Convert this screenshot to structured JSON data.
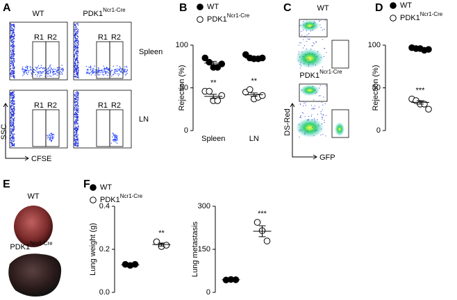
{
  "panel_labels": [
    "A",
    "B",
    "C",
    "D",
    "E",
    "F"
  ],
  "flow_a": {
    "groups": [
      "WT",
      "PDK1"
    ],
    "group_sup": "Ncr1-Cre",
    "gates": [
      "R1",
      "R2"
    ],
    "tissues": [
      "Spleen",
      "LN"
    ],
    "ylabel": "SSC",
    "xlabel": "CFSE"
  },
  "flow_c": {
    "groups": [
      "WT",
      "PDK1"
    ],
    "group_sup": "Ncr1-Cre",
    "ylabel": "DS-Red",
    "xlabel": "GFP"
  },
  "photo_e": {
    "groups": [
      "WT",
      "PDK1"
    ],
    "group_sup": "Ncr1-Cre"
  },
  "chart_data": [
    {
      "type": "dot",
      "categories": [
        "Spleen",
        "LN"
      ],
      "ylabel": "Rejection (%)",
      "ylim": [
        0,
        100
      ],
      "yticks": [
        0,
        50,
        100
      ],
      "legend": true,
      "series": [
        {
          "name": "WT",
          "marker": "filled",
          "color": "#000000",
          "values": [
            [
              85,
              80,
              74,
              74,
              78
            ],
            [
              89,
              85,
              84,
              84,
              85
            ]
          ],
          "mean": [
            79,
            85
          ],
          "sem": [
            2,
            1
          ]
        },
        {
          "name": "PDK1",
          "name_sup": "Ncr1-Cre",
          "marker": "open",
          "color": "#000000",
          "values": [
            [
              46,
              46,
              35,
              35,
              41
            ],
            [
              45,
              48,
              37,
              39,
              41
            ]
          ],
          "mean": [
            40,
            42
          ],
          "sem": [
            2.5,
            2
          ],
          "annotations": [
            "**",
            "**"
          ]
        }
      ]
    },
    {
      "type": "dot",
      "categories": [
        null
      ],
      "ylabel": "Rejection (%)",
      "ylim": [
        0,
        100
      ],
      "yticks": [
        0,
        50,
        100
      ],
      "legend": true,
      "series": [
        {
          "name": "WT",
          "marker": "filled",
          "color": "#000000",
          "values": [
            [
              97,
              96,
              96,
              94,
              95
            ]
          ],
          "mean": [
            96
          ],
          "sem": [
            0.5
          ]
        },
        {
          "name": "PDK1",
          "name_sup": "Ncr1-Cre",
          "marker": "open",
          "color": "#000000",
          "values": [
            [
              37,
              35,
              31,
              31,
              25
            ]
          ],
          "mean": [
            33
          ],
          "sem": [
            2
          ],
          "annotations": [
            "***"
          ]
        }
      ]
    },
    {
      "type": "dot",
      "ylabel": "Lung weight (g)",
      "ylim": [
        0,
        0.4
      ],
      "yticks": [
        {
          "value": 0,
          "label": "0.0"
        },
        0.2,
        0.4
      ],
      "legend": true,
      "series": [
        {
          "name": "WT",
          "marker": "filled",
          "color": "#000000",
          "values": [
            [
              0.13,
              0.125,
              0.13
            ]
          ],
          "mean": [
            0.128
          ],
          "sem": [
            0.003
          ]
        },
        {
          "name": "PDK1",
          "name_sup": "Ncr1-Cre",
          "marker": "open",
          "color": "#000000",
          "values": [
            [
              0.235,
              0.213,
              0.219
            ]
          ],
          "mean": [
            0.222
          ],
          "sem": [
            0.007
          ],
          "annotations": [
            "**"
          ]
        }
      ]
    },
    {
      "type": "dot",
      "ylabel": "Lung metastasis",
      "ylim": [
        0,
        300
      ],
      "yticks": [
        0,
        150,
        300
      ],
      "legend": false,
      "series": [
        {
          "name": "WT",
          "marker": "filled",
          "color": "#000000",
          "values": [
            [
              43,
              45,
              44
            ]
          ],
          "mean": [
            44
          ],
          "sem": [
            1
          ]
        },
        {
          "name": "PDK1",
          "name_sup": "Ncr1-Cre",
          "marker": "open",
          "color": "#000000",
          "values": [
            [
              244,
              215,
              179
            ]
          ],
          "mean": [
            213
          ],
          "sem": [
            19
          ],
          "annotations": [
            "***"
          ]
        }
      ]
    }
  ]
}
